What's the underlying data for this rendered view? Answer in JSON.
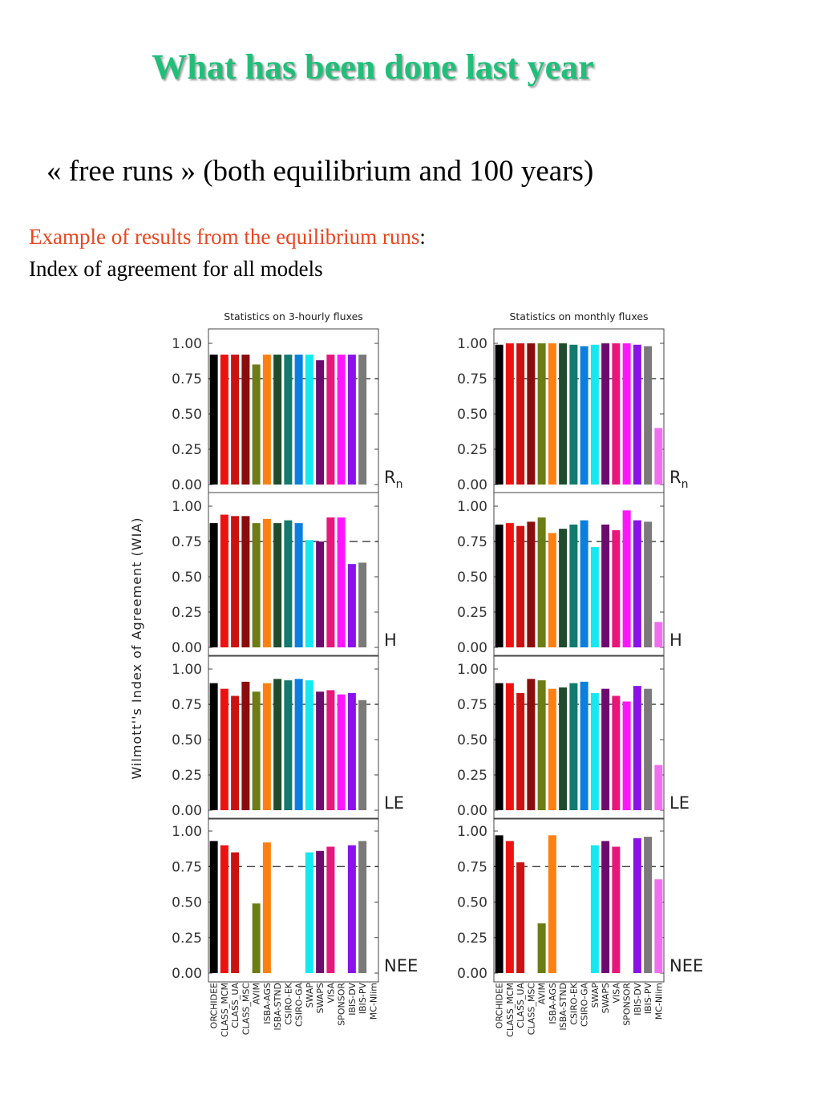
{
  "slide": {
    "title": "What has been done last year",
    "subtitle": "« free runs » (both equilibrium and 100 years)",
    "example_red": "Example of results from the equilibrium runs",
    "example_colon": ":",
    "example_line2": "Index of agreement for all models"
  },
  "chart_data": {
    "type": "bar",
    "ylabel": "Wilmott''s Index of Agreement (WIA)",
    "ylim": [
      0,
      1
    ],
    "yticks": [
      "0.00",
      "0.25",
      "0.50",
      "0.75",
      "1.00"
    ],
    "reference_line": 0.75,
    "categories": [
      "ORCHIDEE",
      "CLASS_MCM",
      "CLASS_UA",
      "CLASS_MSC",
      "AVIM",
      "ISBA-AGS",
      "ISBA-STND",
      "CSIRO-EK",
      "CSIRO-GA",
      "SWAP",
      "SWAPS",
      "VISA",
      "SPONSOR",
      "IBIS-DV",
      "IBIS-PV",
      "MC-Nlim"
    ],
    "colors": [
      "#000000",
      "#ee1111",
      "#cc1111",
      "#8b0c0c",
      "#6b7d14",
      "#ff8010",
      "#1f4c2c",
      "#127a6e",
      "#0a7fe0",
      "#14e8f0",
      "#6c0a70",
      "#e8167a",
      "#ff16ff",
      "#8a12e8",
      "#7a7a7a",
      "#ee70ee"
    ],
    "panels": [
      {
        "column": 0,
        "row": 0,
        "title": "Statistics on 3-hourly fluxes",
        "label": "R",
        "label_sub": "n",
        "values": [
          0.92,
          0.92,
          0.92,
          0.92,
          0.85,
          0.92,
          0.92,
          0.92,
          0.92,
          0.92,
          0.88,
          0.92,
          0.92,
          0.92,
          0.92,
          null
        ]
      },
      {
        "column": 0,
        "row": 1,
        "label": "H",
        "label_sub": "",
        "values": [
          0.88,
          0.94,
          0.93,
          0.93,
          0.88,
          0.91,
          0.88,
          0.9,
          0.88,
          0.76,
          0.75,
          0.92,
          0.92,
          0.59,
          0.6,
          null
        ]
      },
      {
        "column": 0,
        "row": 2,
        "label": "LE",
        "label_sub": "",
        "values": [
          0.9,
          0.86,
          0.81,
          0.91,
          0.84,
          0.9,
          0.93,
          0.92,
          0.93,
          0.92,
          0.84,
          0.85,
          0.82,
          0.83,
          0.78,
          null
        ]
      },
      {
        "column": 0,
        "row": 3,
        "label": "NEE",
        "label_sub": "",
        "values": [
          0.93,
          0.9,
          0.85,
          null,
          0.49,
          0.92,
          null,
          null,
          null,
          0.85,
          0.86,
          0.89,
          null,
          0.9,
          0.93,
          null
        ]
      },
      {
        "column": 1,
        "row": 0,
        "title": "Statistics on monthly fluxes",
        "label": "R",
        "label_sub": "n",
        "values": [
          0.99,
          1.0,
          1.0,
          1.0,
          1.0,
          1.0,
          1.0,
          0.99,
          0.98,
          0.99,
          1.0,
          1.0,
          1.0,
          0.99,
          0.98,
          0.4
        ]
      },
      {
        "column": 1,
        "row": 1,
        "label": "H",
        "label_sub": "",
        "values": [
          0.87,
          0.88,
          0.86,
          0.89,
          0.92,
          0.81,
          0.84,
          0.87,
          0.9,
          0.71,
          0.87,
          0.83,
          0.97,
          0.9,
          0.89,
          0.18
        ]
      },
      {
        "column": 1,
        "row": 2,
        "label": "LE",
        "label_sub": "",
        "values": [
          0.9,
          0.9,
          0.83,
          0.93,
          0.92,
          0.86,
          0.87,
          0.9,
          0.91,
          0.83,
          0.86,
          0.81,
          0.77,
          0.88,
          0.86,
          0.32
        ]
      },
      {
        "column": 1,
        "row": 3,
        "label": "NEE",
        "label_sub": "",
        "values": [
          0.97,
          0.93,
          0.78,
          null,
          0.35,
          0.97,
          null,
          null,
          null,
          0.9,
          0.93,
          0.89,
          null,
          0.95,
          0.96,
          0.66
        ]
      }
    ]
  }
}
